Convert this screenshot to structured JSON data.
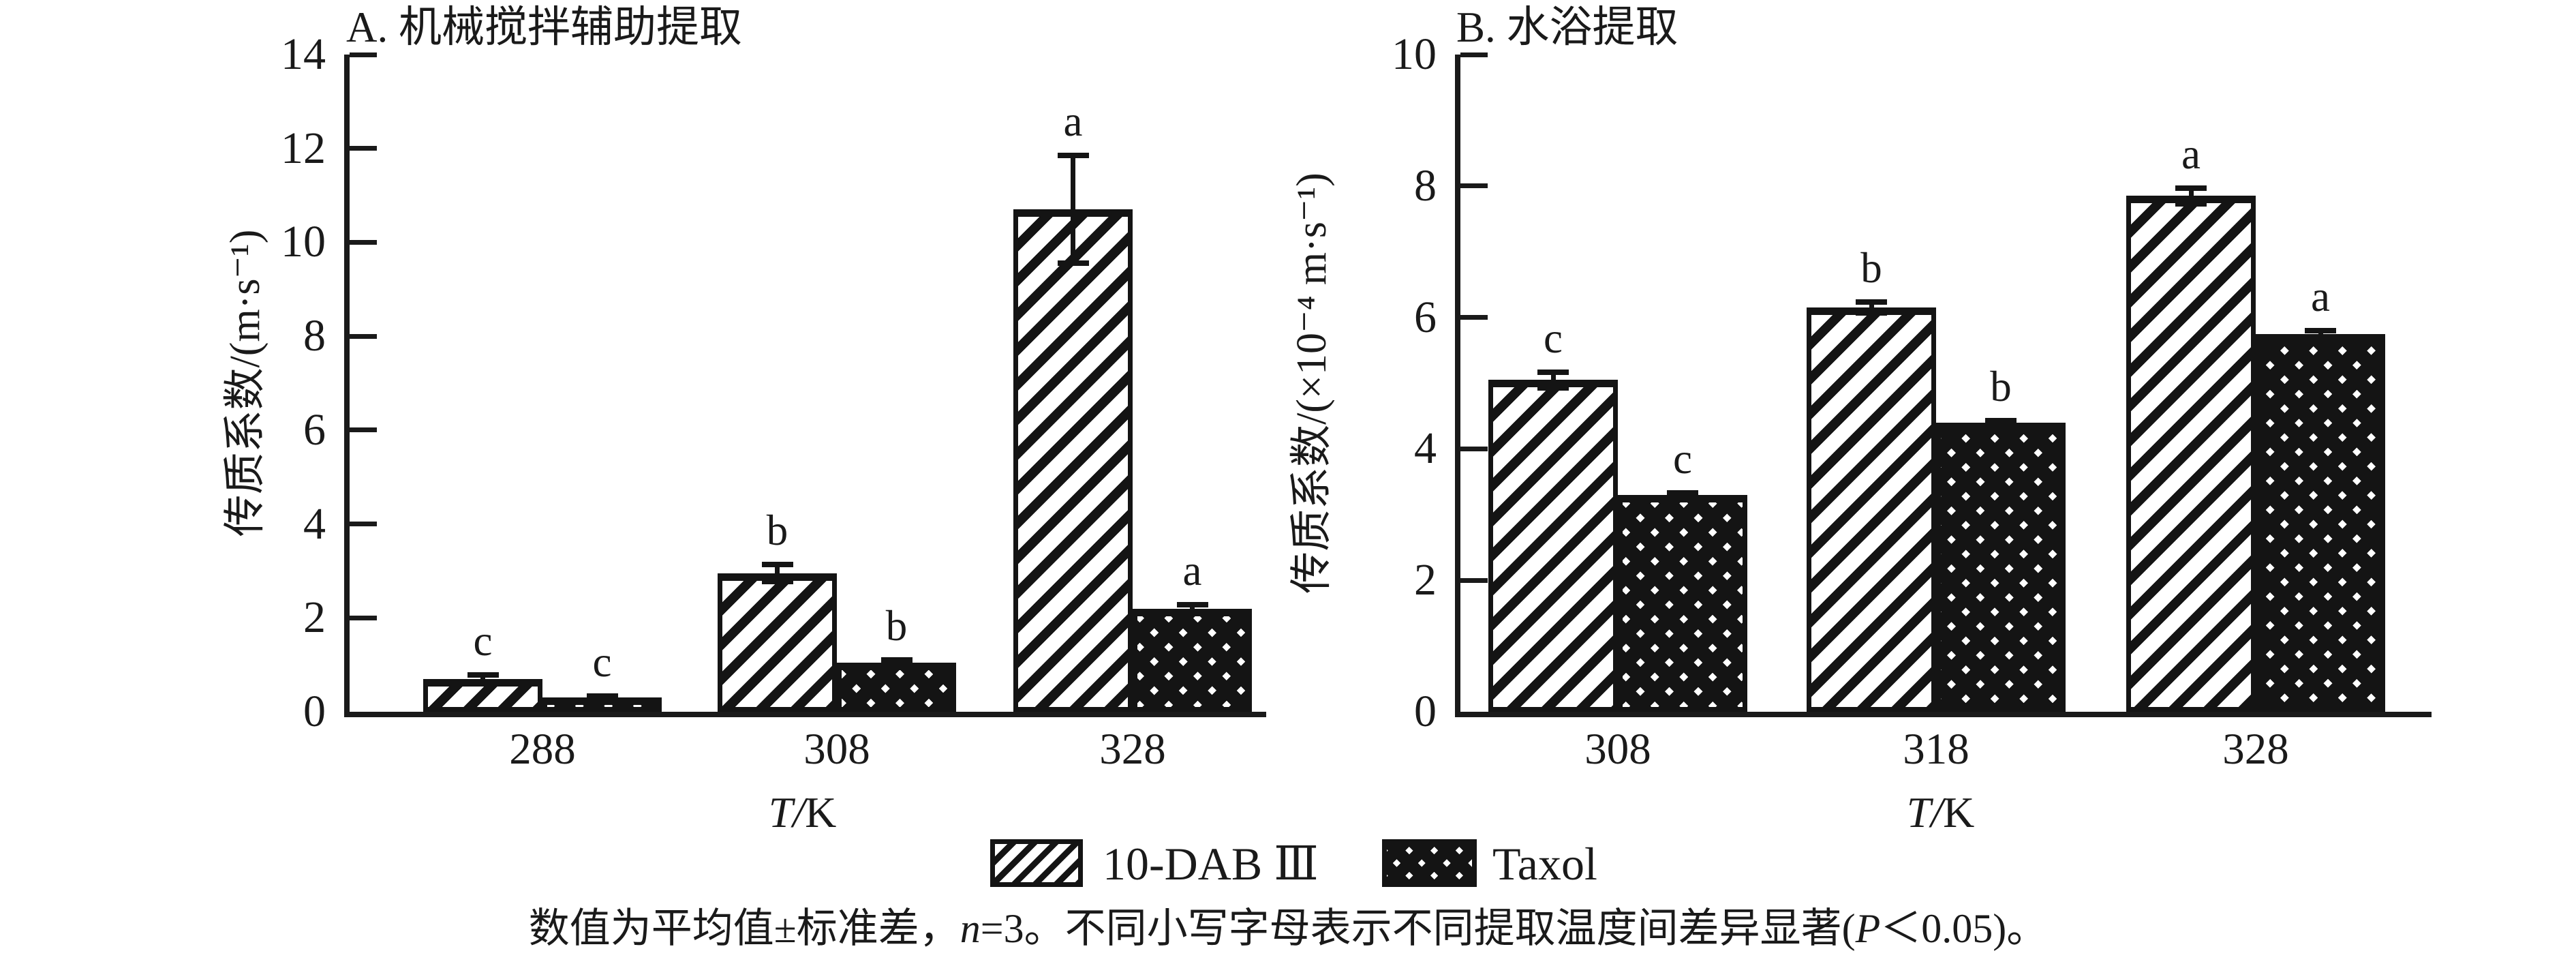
{
  "figure_colors": {
    "ink": "#141414",
    "background": "#ffffff"
  },
  "chart_data": [
    {
      "type": "bar",
      "panel_label": "A",
      "title": "A. 机械搅拌辅助提取",
      "xlabel": "T/K",
      "ylabel": "传质系数/(m·s⁻¹)",
      "ylim": [
        0,
        14
      ],
      "ytick_step": 2,
      "grid": false,
      "categories": [
        "288",
        "308",
        "328"
      ],
      "series": [
        {
          "name": "10-DAB Ⅲ",
          "pattern": "diagonal",
          "values": [
            0.7,
            2.95,
            10.7
          ],
          "errors": [
            0.08,
            0.18,
            1.15
          ],
          "sig_letters": [
            "c",
            "b",
            "a"
          ]
        },
        {
          "name": "Taxol",
          "pattern": "crosshatch",
          "values": [
            0.3,
            1.05,
            2.2
          ],
          "errors": [
            0.03,
            0.05,
            0.08
          ],
          "sig_letters": [
            "c",
            "b",
            "a"
          ]
        }
      ]
    },
    {
      "type": "bar",
      "panel_label": "B",
      "title": "B. 水浴提取",
      "xlabel": "T/K",
      "ylabel": "传质系数/(×10⁻⁴ m·s⁻¹)",
      "ylim": [
        0,
        10
      ],
      "ytick_step": 2,
      "grid": false,
      "categories": [
        "308",
        "318",
        "328"
      ],
      "series": [
        {
          "name": "10-DAB Ⅲ",
          "pattern": "diagonal",
          "values": [
            5.05,
            6.15,
            7.85
          ],
          "errors": [
            0.12,
            0.08,
            0.12
          ],
          "sig_letters": [
            "c",
            "b",
            "a"
          ]
        },
        {
          "name": "Taxol",
          "pattern": "crosshatch",
          "values": [
            3.3,
            4.4,
            5.75
          ],
          "errors": [
            0.03,
            0.03,
            0.05
          ],
          "sig_letters": [
            "c",
            "b",
            "a"
          ]
        }
      ]
    }
  ],
  "legend": {
    "position": "bottom-center",
    "items": [
      {
        "label": "10-DAB Ⅲ",
        "pattern": "diagonal"
      },
      {
        "label": "Taxol",
        "pattern": "crosshatch"
      }
    ]
  },
  "caption_parts": [
    {
      "text": "数值为平均值±标准差，",
      "italic": false
    },
    {
      "text": "n",
      "italic": true
    },
    {
      "text": "=3。不同小写字母表示不同提取温度间差异显著(",
      "italic": false
    },
    {
      "text": "P",
      "italic": true
    },
    {
      "text": "＜0.05)。",
      "italic": false
    }
  ]
}
